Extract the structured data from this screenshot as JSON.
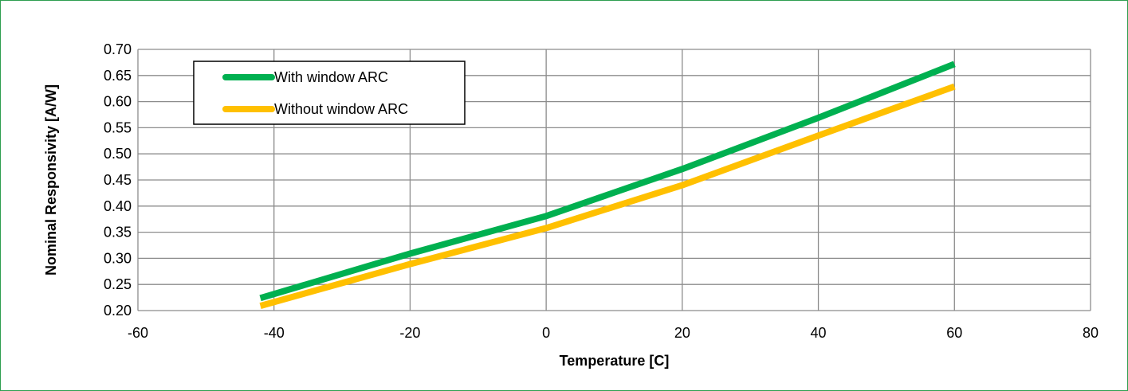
{
  "chart_data": {
    "type": "line",
    "title": "",
    "xlabel": "Temperature [C]",
    "ylabel": "Nominal Responsivity [A/W]",
    "xlim": [
      -60,
      80
    ],
    "ylim": [
      0.2,
      0.7
    ],
    "x_ticks": [
      "-60",
      "-40",
      "-20",
      "0",
      "20",
      "40",
      "60",
      "80"
    ],
    "y_ticks": [
      "0.20",
      "0.25",
      "0.30",
      "0.35",
      "0.40",
      "0.45",
      "0.50",
      "0.55",
      "0.60",
      "0.65",
      "0.70"
    ],
    "grid": true,
    "legend_position": "top-left",
    "series": [
      {
        "name": "With window ARC",
        "color": "#00b050",
        "x": [
          -42,
          -20,
          0,
          20,
          40,
          60
        ],
        "y": [
          0.224,
          0.309,
          0.381,
          0.471,
          0.569,
          0.672
        ]
      },
      {
        "name": "Without window ARC",
        "color": "#ffc000",
        "x": [
          -42,
          -20,
          0,
          20,
          40,
          60
        ],
        "y": [
          0.209,
          0.289,
          0.358,
          0.44,
          0.535,
          0.629
        ]
      }
    ]
  }
}
